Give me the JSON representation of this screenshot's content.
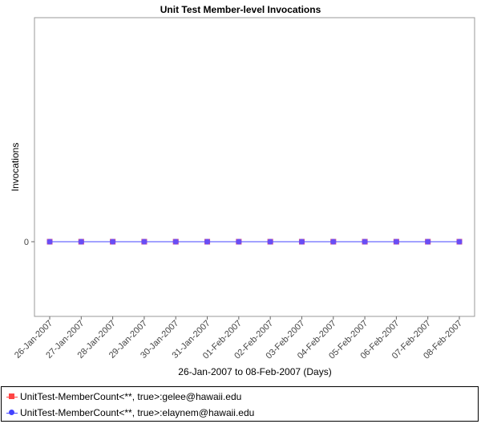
{
  "chart_data": {
    "type": "line",
    "title": "Unit Test Member-level Invocations",
    "xlabel": "26-Jan-2007 to 08-Feb-2007 (Days)",
    "ylabel": "Invocations",
    "categories": [
      "26-Jan-2007",
      "27-Jan-2007",
      "28-Jan-2007",
      "29-Jan-2007",
      "30-Jan-2007",
      "31-Jan-2007",
      "01-Feb-2007",
      "02-Feb-2007",
      "03-Feb-2007",
      "04-Feb-2007",
      "05-Feb-2007",
      "06-Feb-2007",
      "07-Feb-2007",
      "08-Feb-2007"
    ],
    "y_ticks": [
      0
    ],
    "grid": false,
    "legend_position": "bottom",
    "series": [
      {
        "name": "UnitTest-MemberCount<**, true>:gelee@hawaii.edu",
        "color": "#ff4444",
        "marker": "square",
        "values": [
          0,
          0,
          0,
          0,
          0,
          0,
          0,
          0,
          0,
          0,
          0,
          0,
          0,
          0
        ]
      },
      {
        "name": "UnitTest-MemberCount<**, true>:elaynem@hawaii.edu",
        "color": "#4444ff",
        "marker": "circle",
        "values": [
          0,
          0,
          0,
          0,
          0,
          0,
          0,
          0,
          0,
          0,
          0,
          0,
          0,
          0
        ]
      }
    ]
  }
}
